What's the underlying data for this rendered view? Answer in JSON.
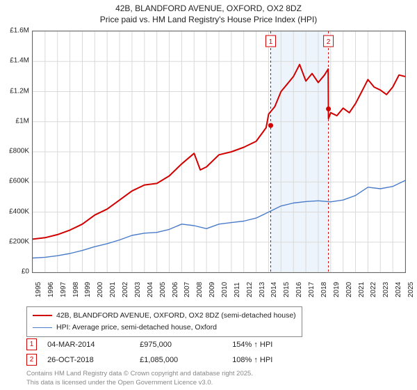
{
  "title_line1": "42B, BLANDFORD AVENUE, OXFORD, OX2 8DZ",
  "title_line2": "Price paid vs. HM Land Registry's House Price Index (HPI)",
  "chart": {
    "type": "line",
    "x_start_year": 1995,
    "x_end_year": 2025,
    "x_tick_years": [
      1995,
      1996,
      1997,
      1998,
      1999,
      2000,
      2001,
      2002,
      2003,
      2004,
      2005,
      2006,
      2007,
      2008,
      2009,
      2010,
      2011,
      2012,
      2013,
      2014,
      2015,
      2016,
      2017,
      2018,
      2019,
      2020,
      2021,
      2022,
      2023,
      2024,
      2025
    ],
    "y_min": 0,
    "y_max": 1600000,
    "y_ticks": [
      {
        "v": 0,
        "label": "£0"
      },
      {
        "v": 200000,
        "label": "£200K"
      },
      {
        "v": 400000,
        "label": "£400K"
      },
      {
        "v": 600000,
        "label": "£600K"
      },
      {
        "v": 800000,
        "label": "£800K"
      },
      {
        "v": 1000000,
        "label": "£1M"
      },
      {
        "v": 1200000,
        "label": "£1.2M"
      },
      {
        "v": 1400000,
        "label": "£1.4M"
      },
      {
        "v": 1600000,
        "label": "£1.6M"
      }
    ],
    "grid_color": "#d9d9d9",
    "axis_color": "#666666",
    "background": "#ffffff",
    "series": [
      {
        "name": "price_paid",
        "label": "42B, BLANDFORD AVENUE, OXFORD, OX2 8DZ (semi-detached house)",
        "color": "#d10000",
        "width": 2,
        "data": [
          [
            1995,
            220000
          ],
          [
            1996,
            230000
          ],
          [
            1997,
            250000
          ],
          [
            1998,
            280000
          ],
          [
            1999,
            320000
          ],
          [
            2000,
            380000
          ],
          [
            2001,
            420000
          ],
          [
            2002,
            480000
          ],
          [
            2003,
            540000
          ],
          [
            2004,
            580000
          ],
          [
            2005,
            590000
          ],
          [
            2006,
            640000
          ],
          [
            2007,
            720000
          ],
          [
            2008,
            790000
          ],
          [
            2008.5,
            680000
          ],
          [
            2009,
            700000
          ],
          [
            2010,
            780000
          ],
          [
            2011,
            800000
          ],
          [
            2012,
            830000
          ],
          [
            2013,
            870000
          ],
          [
            2013.8,
            960000
          ],
          [
            2014,
            1050000
          ],
          [
            2014.5,
            1100000
          ],
          [
            2015,
            1200000
          ],
          [
            2015.5,
            1250000
          ],
          [
            2016,
            1300000
          ],
          [
            2016.5,
            1380000
          ],
          [
            2017,
            1270000
          ],
          [
            2017.5,
            1320000
          ],
          [
            2018,
            1260000
          ],
          [
            2018.5,
            1310000
          ],
          [
            2018.8,
            1350000
          ],
          [
            2018.82,
            1020000
          ],
          [
            2019,
            1060000
          ],
          [
            2019.5,
            1040000
          ],
          [
            2020,
            1090000
          ],
          [
            2020.5,
            1060000
          ],
          [
            2021,
            1120000
          ],
          [
            2021.5,
            1200000
          ],
          [
            2022,
            1280000
          ],
          [
            2022.5,
            1230000
          ],
          [
            2023,
            1210000
          ],
          [
            2023.5,
            1180000
          ],
          [
            2024,
            1230000
          ],
          [
            2024.5,
            1310000
          ],
          [
            2025,
            1300000
          ]
        ]
      },
      {
        "name": "hpi",
        "label": "HPI: Average price, semi-detached house, Oxford",
        "color": "#4a7cc9",
        "width": 1.4,
        "data": [
          [
            1995,
            95000
          ],
          [
            1996,
            100000
          ],
          [
            1997,
            110000
          ],
          [
            1998,
            125000
          ],
          [
            1999,
            145000
          ],
          [
            2000,
            170000
          ],
          [
            2001,
            190000
          ],
          [
            2002,
            215000
          ],
          [
            2003,
            245000
          ],
          [
            2004,
            260000
          ],
          [
            2005,
            265000
          ],
          [
            2006,
            285000
          ],
          [
            2007,
            320000
          ],
          [
            2008,
            310000
          ],
          [
            2009,
            290000
          ],
          [
            2010,
            320000
          ],
          [
            2011,
            330000
          ],
          [
            2012,
            340000
          ],
          [
            2013,
            360000
          ],
          [
            2014,
            400000
          ],
          [
            2015,
            440000
          ],
          [
            2016,
            460000
          ],
          [
            2017,
            470000
          ],
          [
            2018,
            475000
          ],
          [
            2019,
            468000
          ],
          [
            2020,
            480000
          ],
          [
            2021,
            510000
          ],
          [
            2022,
            565000
          ],
          [
            2023,
            555000
          ],
          [
            2024,
            570000
          ],
          [
            2025,
            610000
          ]
        ]
      }
    ],
    "shaded_band": {
      "x_from": 2014.17,
      "x_to": 2018.82,
      "fill": "#eef4fb"
    },
    "markers": [
      {
        "n": "1",
        "x": 2014.17,
        "y": 975000,
        "border": "#d10000"
      },
      {
        "n": "2",
        "x": 2018.82,
        "y": 1085000,
        "border": "#d10000"
      }
    ]
  },
  "legend": {
    "row1_label": "42B, BLANDFORD AVENUE, OXFORD, OX2 8DZ (semi-detached house)",
    "row2_label": "HPI: Average price, semi-detached house, Oxford"
  },
  "transactions": [
    {
      "n": "1",
      "date": "04-MAR-2014",
      "price": "£975,000",
      "delta": "154% ↑ HPI"
    },
    {
      "n": "2",
      "date": "26-OCT-2018",
      "price": "£1,085,000",
      "delta": "108% ↑ HPI"
    }
  ],
  "footnote_line1": "Contains HM Land Registry data © Crown copyright and database right 2025.",
  "footnote_line2": "This data is licensed under the Open Government Licence v3.0."
}
